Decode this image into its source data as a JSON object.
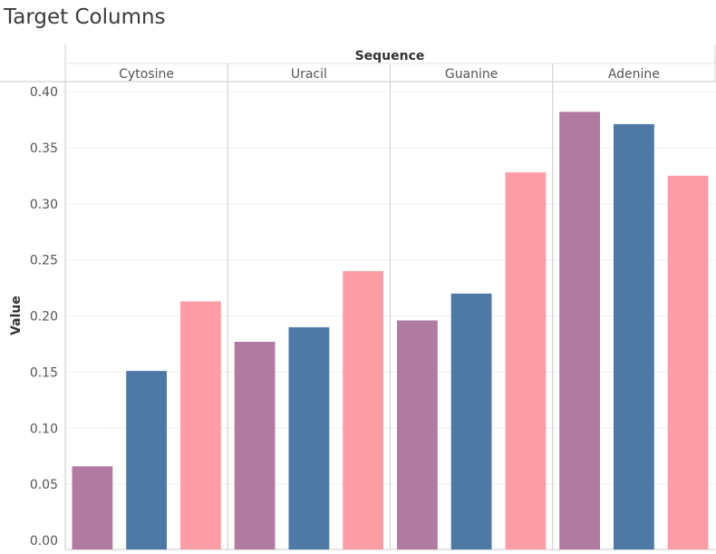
{
  "page": {
    "title": "Target Columns"
  },
  "chart_data": {
    "type": "bar",
    "title": "Target Columns",
    "column_header": "Sequence",
    "ylabel": "Value",
    "xlabel": "",
    "ylim": [
      0,
      0.41
    ],
    "yticks": [
      0.0,
      0.05,
      0.1,
      0.15,
      0.2,
      0.25,
      0.3,
      0.35,
      0.4
    ],
    "ytick_labels": [
      "0.00",
      "0.05",
      "0.10",
      "0.15",
      "0.20",
      "0.25",
      "0.30",
      "0.35",
      "0.40"
    ],
    "grid": true,
    "legend": "none",
    "categories": [
      "Cytosine",
      "Uracil",
      "Guanine",
      "Adenine"
    ],
    "series_colors": [
      "#b07aa1",
      "#4e79a7",
      "#ff9da7"
    ],
    "series": [
      {
        "values": [
          0.066,
          0.177,
          0.196,
          0.382
        ]
      },
      {
        "values": [
          0.151,
          0.19,
          0.22,
          0.371
        ]
      },
      {
        "values": [
          0.213,
          0.24,
          0.328,
          0.325
        ]
      }
    ]
  }
}
